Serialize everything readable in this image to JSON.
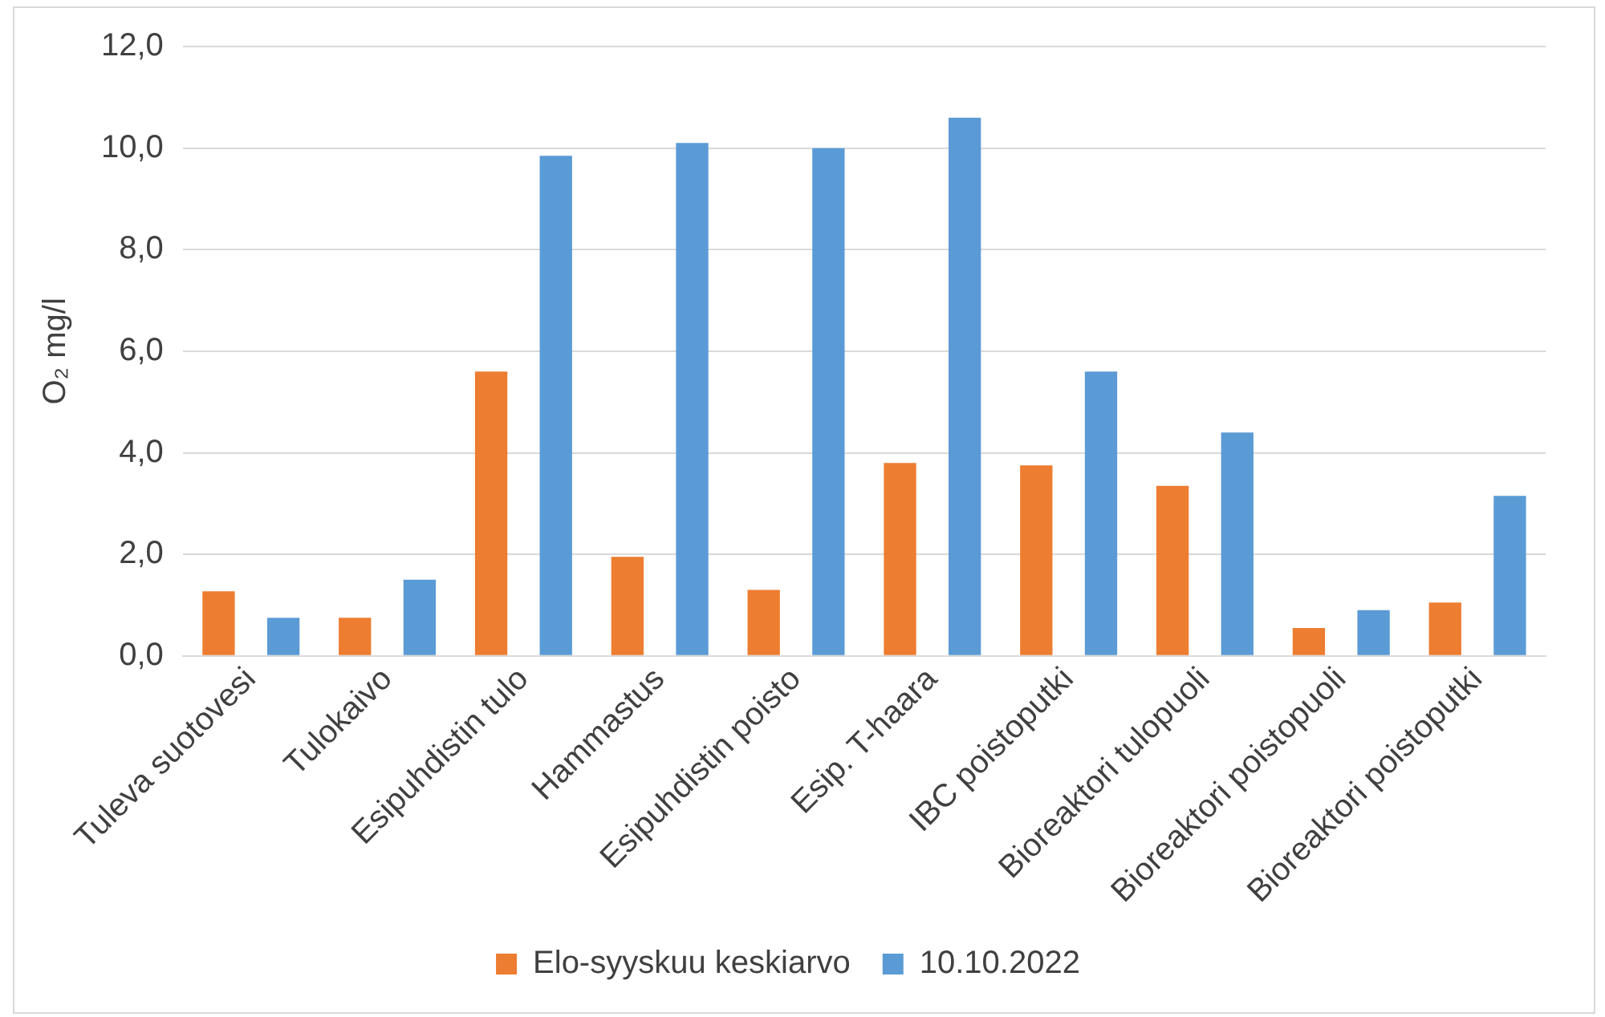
{
  "chart_data": {
    "type": "bar",
    "ylabel": "O₂ mg/l",
    "categories": [
      "Tuleva suotovesi",
      "Tulokaivo",
      "Esipuhdistin tulo",
      "Hammastus",
      "Esipuhdistin poisto",
      "Esip. T-haara",
      "IBC poistoputki",
      "Bioreaktori tulopuoli",
      "Bioreaktori poistopuoli",
      "Bioreaktori poistoputki"
    ],
    "series": [
      {
        "name": "Elo-syyskuu keskiarvo",
        "color": "#ed7d31",
        "values": [
          1.27,
          0.75,
          5.6,
          1.95,
          1.3,
          3.8,
          3.75,
          3.35,
          0.55,
          1.05
        ]
      },
      {
        "name": "10.10.2022",
        "color": "#5b9bd5",
        "values": [
          0.75,
          1.5,
          9.85,
          10.1,
          10.0,
          10.6,
          5.6,
          4.4,
          0.9,
          3.15
        ]
      }
    ],
    "ylim": [
      0,
      12
    ],
    "yticks": [
      {
        "value": 0,
        "label": "0,0"
      },
      {
        "value": 2,
        "label": "2,0"
      },
      {
        "value": 4,
        "label": "4,0"
      },
      {
        "value": 6,
        "label": "6,0"
      },
      {
        "value": 8,
        "label": "8,0"
      },
      {
        "value": 10,
        "label": "10,0"
      },
      {
        "value": 12,
        "label": "12,0"
      }
    ],
    "grid": "y",
    "legend": "bottom"
  }
}
